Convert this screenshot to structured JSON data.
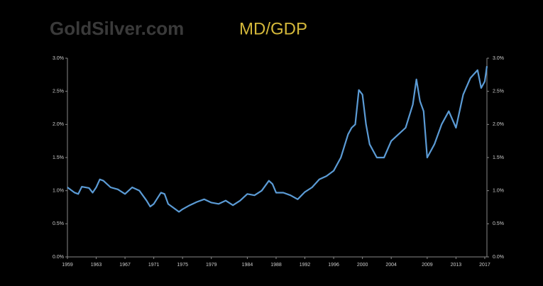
{
  "logo": "GoldSilver.com",
  "chart_data": {
    "type": "line",
    "title": "MD/GDP",
    "x": [
      1959,
      1960,
      1960.5,
      1961,
      1962,
      1962.5,
      1963,
      1963.5,
      1964,
      1965,
      1966,
      1967,
      1968,
      1969,
      1970,
      1970.5,
      1971,
      1972,
      1972.5,
      1973,
      1974,
      1974.5,
      1975,
      1976,
      1977,
      1978,
      1979,
      1980,
      1981,
      1982,
      1983,
      1984,
      1985,
      1986,
      1987,
      1987.5,
      1988,
      1989,
      1990,
      1991,
      1992,
      1993,
      1994,
      1995,
      1996,
      1997,
      1998,
      1998.5,
      1999,
      1999.5,
      2000,
      2000.5,
      2001,
      2002,
      2003,
      2004,
      2005,
      2006,
      2007,
      2007.5,
      2008,
      2008.5,
      2009,
      2010,
      2011,
      2012,
      2013,
      2014,
      2015,
      2016,
      2016.5,
      2017,
      2017.3
    ],
    "series": [
      {
        "color": "#5b9bd5",
        "values": [
          1.05,
          0.97,
          0.95,
          1.06,
          1.04,
          0.97,
          1.05,
          1.17,
          1.15,
          1.05,
          1.02,
          0.95,
          1.05,
          1.0,
          0.85,
          0.76,
          0.8,
          0.97,
          0.95,
          0.8,
          0.72,
          0.68,
          0.72,
          0.78,
          0.83,
          0.87,
          0.82,
          0.8,
          0.85,
          0.78,
          0.85,
          0.95,
          0.93,
          1.0,
          1.15,
          1.1,
          0.97,
          0.97,
          0.93,
          0.87,
          0.98,
          1.05,
          1.17,
          1.22,
          1.3,
          1.5,
          1.85,
          1.95,
          2.0,
          2.52,
          2.45,
          2.0,
          1.7,
          1.5,
          1.5,
          1.75,
          1.85,
          1.95,
          2.3,
          2.68,
          2.35,
          2.2,
          1.5,
          1.7,
          2.0,
          2.2,
          1.95,
          2.45,
          2.7,
          2.82,
          2.55,
          2.65,
          2.88
        ]
      }
    ],
    "xlim": [
      1959,
      2017.3
    ],
    "xticks": [
      1959,
      1963,
      1967,
      1971,
      1975,
      1979,
      1984,
      1988,
      1992,
      1996,
      2000,
      2004,
      2009,
      2013,
      2017
    ],
    "ylim": [
      0,
      3
    ],
    "yticks": [
      {
        "value": 0,
        "label": "0.0%"
      },
      {
        "value": 0.5,
        "label": "0.5%"
      },
      {
        "value": 1,
        "label": "1.0%"
      },
      {
        "value": 1.5,
        "label": "1.5%"
      },
      {
        "value": 2,
        "label": "2.0%"
      },
      {
        "value": 2.5,
        "label": "2.5%"
      },
      {
        "value": 3,
        "label": "3.0%"
      }
    ],
    "y2lim": [
      0,
      3
    ],
    "y2ticks": [
      {
        "value": 0,
        "label": "0.0%"
      },
      {
        "value": 0.5,
        "label": "0.5%"
      },
      {
        "value": 1,
        "label": "1.0%"
      },
      {
        "value": 1.5,
        "label": "1.5%"
      },
      {
        "value": 2,
        "label": "2.0%"
      },
      {
        "value": 2.5,
        "label": "2.5%"
      },
      {
        "value": 3,
        "label": "3.0%"
      }
    ]
  }
}
